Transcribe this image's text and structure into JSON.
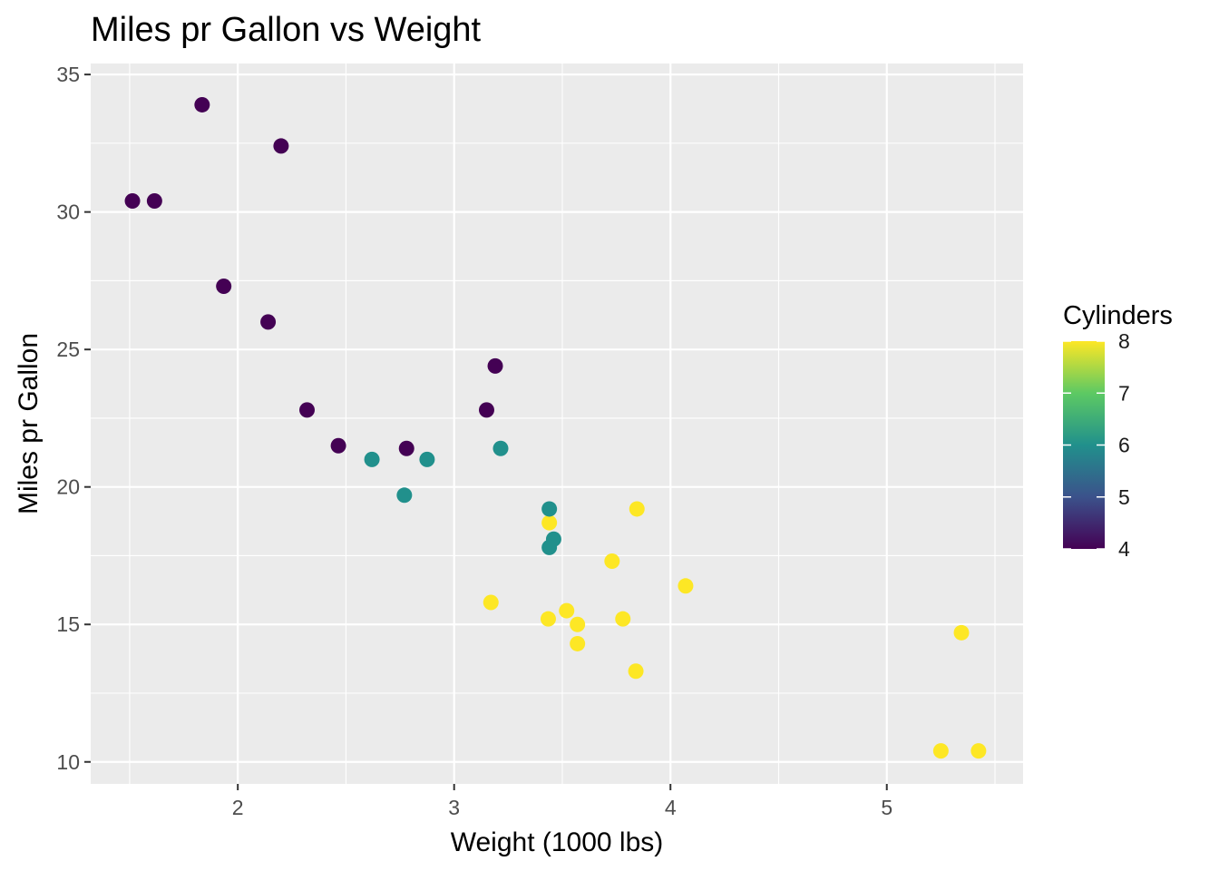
{
  "chart_data": {
    "type": "scatter",
    "title": "Miles pr Gallon vs Weight",
    "xlabel": "Weight (1000 lbs)",
    "ylabel": "Miles pr Gallon",
    "xlim": [
      1.32,
      5.63
    ],
    "ylim": [
      9.2,
      35.4
    ],
    "x_ticks": [
      2,
      3,
      4,
      5
    ],
    "y_ticks": [
      10,
      15,
      20,
      25,
      30,
      35
    ],
    "grid": true,
    "legend": {
      "title": "Cylinders",
      "placement": "right",
      "type": "colorbar",
      "range": [
        4,
        8
      ],
      "ticks": [
        4,
        5,
        6,
        7,
        8
      ]
    },
    "color_scale": [
      "#440154",
      "#3b528b",
      "#21908c",
      "#5dc963",
      "#fde725"
    ],
    "points": [
      {
        "x": 2.62,
        "y": 21.0,
        "cyl": 6
      },
      {
        "x": 2.875,
        "y": 21.0,
        "cyl": 6
      },
      {
        "x": 2.32,
        "y": 22.8,
        "cyl": 4
      },
      {
        "x": 3.215,
        "y": 21.4,
        "cyl": 6
      },
      {
        "x": 3.44,
        "y": 18.7,
        "cyl": 8
      },
      {
        "x": 3.46,
        "y": 18.1,
        "cyl": 6
      },
      {
        "x": 3.57,
        "y": 14.3,
        "cyl": 8
      },
      {
        "x": 3.19,
        "y": 24.4,
        "cyl": 4
      },
      {
        "x": 3.15,
        "y": 22.8,
        "cyl": 4
      },
      {
        "x": 3.44,
        "y": 19.2,
        "cyl": 6
      },
      {
        "x": 3.44,
        "y": 17.8,
        "cyl": 6
      },
      {
        "x": 4.07,
        "y": 16.4,
        "cyl": 8
      },
      {
        "x": 3.73,
        "y": 17.3,
        "cyl": 8
      },
      {
        "x": 3.78,
        "y": 15.2,
        "cyl": 8
      },
      {
        "x": 5.25,
        "y": 10.4,
        "cyl": 8
      },
      {
        "x": 5.424,
        "y": 10.4,
        "cyl": 8
      },
      {
        "x": 5.345,
        "y": 14.7,
        "cyl": 8
      },
      {
        "x": 2.2,
        "y": 32.4,
        "cyl": 4
      },
      {
        "x": 1.615,
        "y": 30.4,
        "cyl": 4
      },
      {
        "x": 1.835,
        "y": 33.9,
        "cyl": 4
      },
      {
        "x": 2.465,
        "y": 21.5,
        "cyl": 4
      },
      {
        "x": 3.52,
        "y": 15.5,
        "cyl": 8
      },
      {
        "x": 3.435,
        "y": 15.2,
        "cyl": 8
      },
      {
        "x": 3.84,
        "y": 13.3,
        "cyl": 8
      },
      {
        "x": 3.845,
        "y": 19.2,
        "cyl": 8
      },
      {
        "x": 1.935,
        "y": 27.3,
        "cyl": 4
      },
      {
        "x": 2.14,
        "y": 26.0,
        "cyl": 4
      },
      {
        "x": 1.513,
        "y": 30.4,
        "cyl": 4
      },
      {
        "x": 3.17,
        "y": 15.8,
        "cyl": 8
      },
      {
        "x": 2.77,
        "y": 19.7,
        "cyl": 6
      },
      {
        "x": 3.57,
        "y": 15.0,
        "cyl": 8
      },
      {
        "x": 2.78,
        "y": 21.4,
        "cyl": 4
      }
    ]
  }
}
